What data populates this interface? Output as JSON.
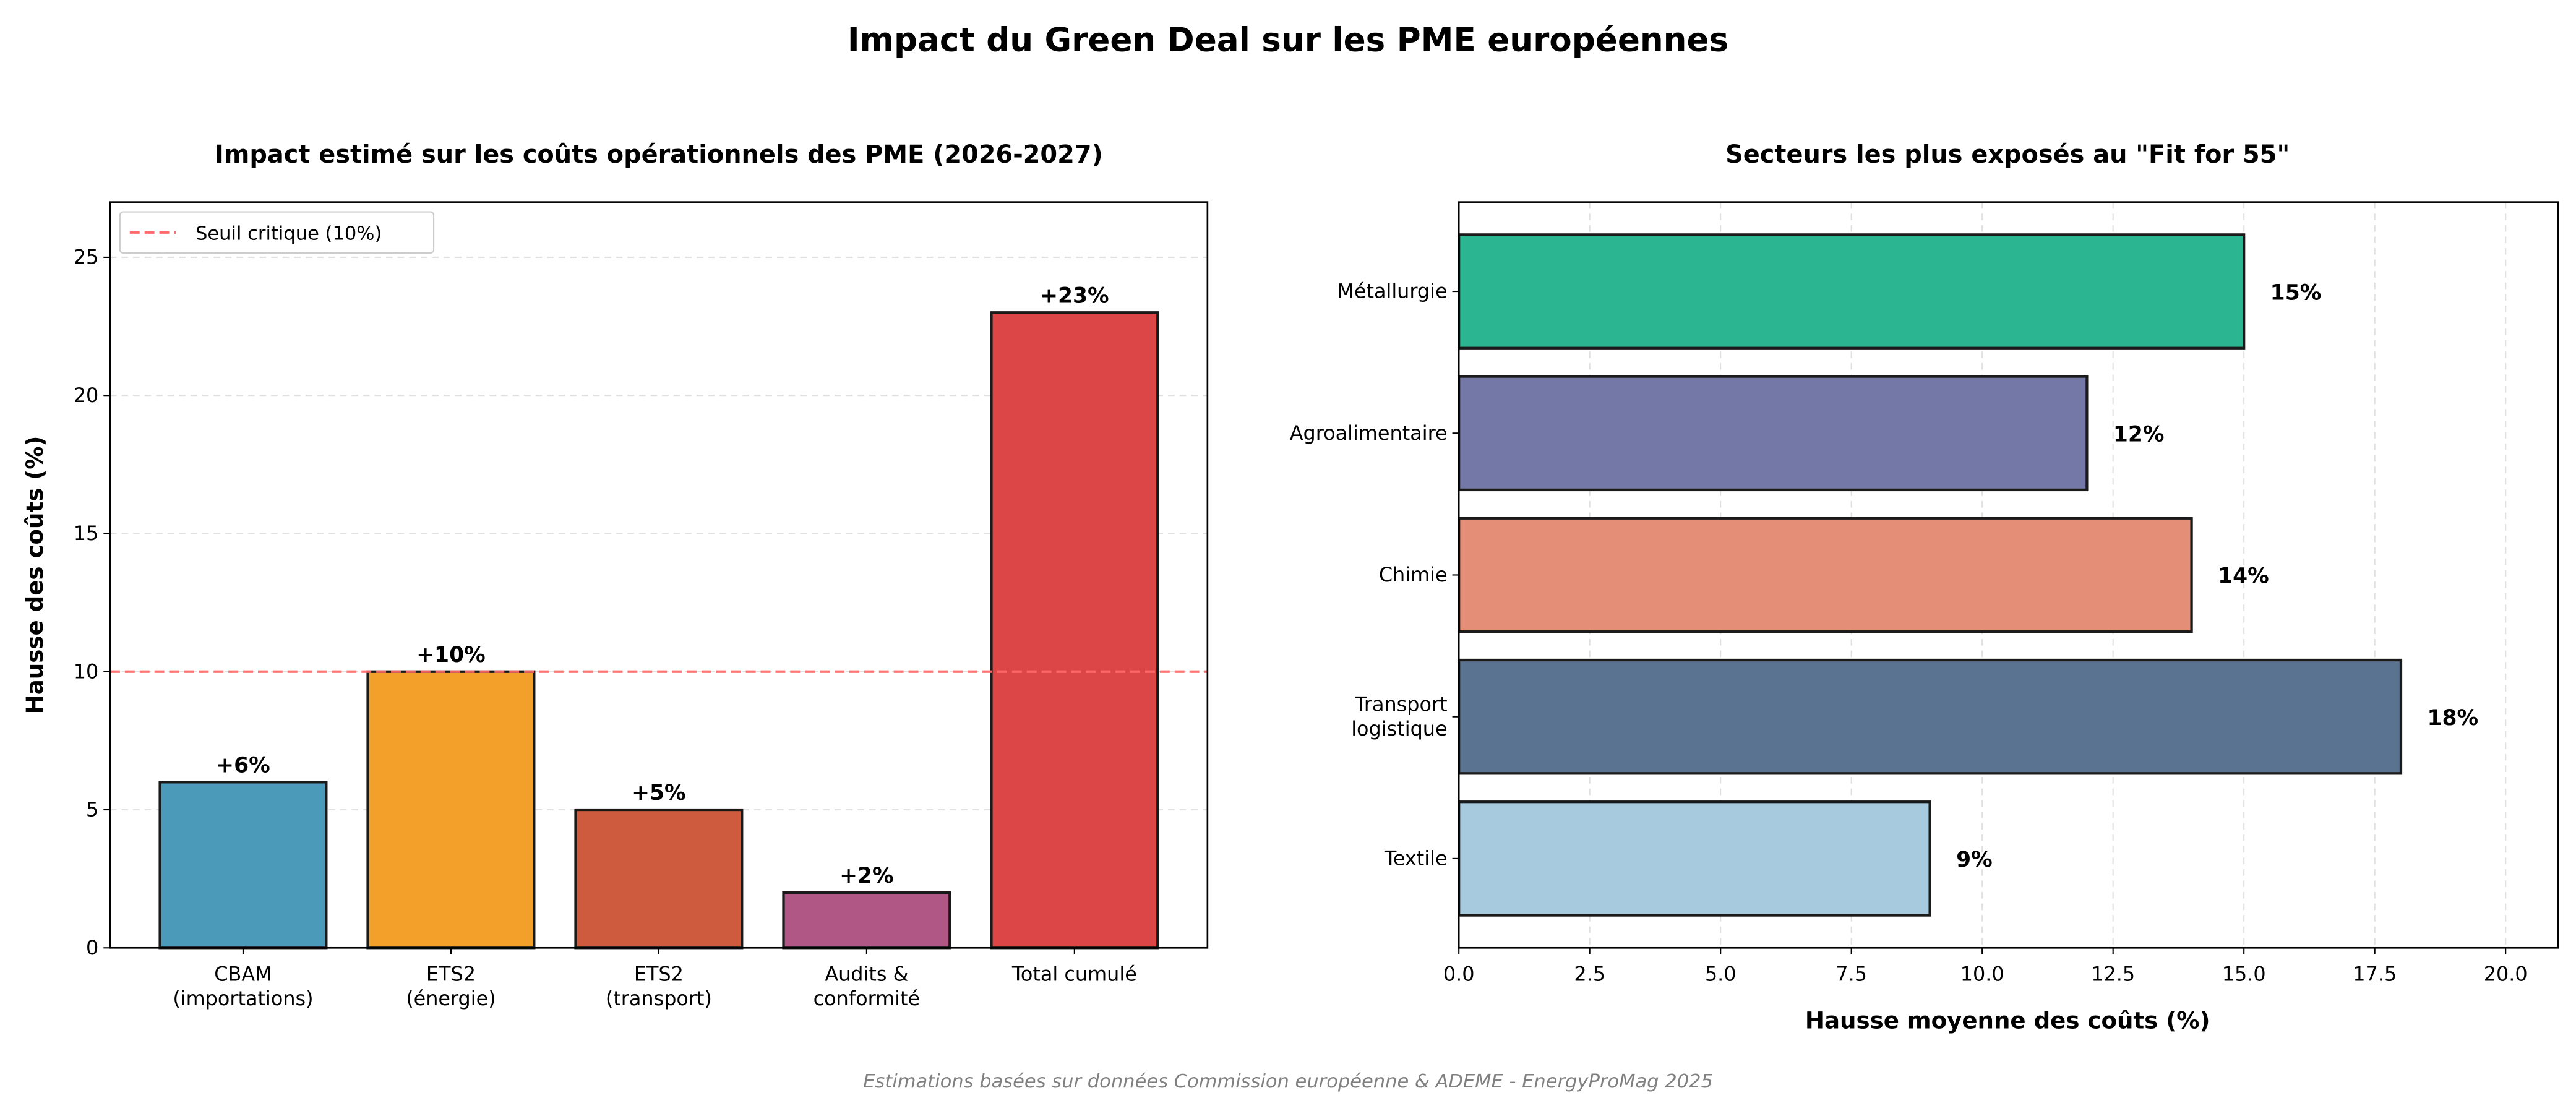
{
  "title": "Impact du Green Deal sur les PME européennes",
  "footer": "Estimations basées sur données Commission européenne & ADEME - EnergyProMag 2025",
  "chart_data": [
    {
      "type": "bar",
      "title": "Impact estimé sur les coûts opérationnels des PME (2026-2027)",
      "xlabel": "",
      "ylabel": "Hausse des coûts (%)",
      "categories": [
        [
          "CBAM",
          "(importations)"
        ],
        [
          "ETS2",
          "(énergie)"
        ],
        [
          "ETS2",
          "(transport)"
        ],
        [
          "Audits &",
          "conformité"
        ],
        [
          "Total cumulé"
        ]
      ],
      "values": [
        6,
        10,
        5,
        2,
        23
      ],
      "data_labels": [
        "+6%",
        "+10%",
        "+5%",
        "+2%",
        "+23%"
      ],
      "colors": [
        "#4b9ab9",
        "#f3a02a",
        "#ce5b3e",
        "#b05785",
        "#dc4647"
      ],
      "ylim": [
        0,
        27
      ],
      "yticks": [
        0,
        5,
        10,
        15,
        20,
        25
      ],
      "grid": "y dashed",
      "reference_line": {
        "value": 10,
        "label": "Seuil critique (10%)",
        "color": "#ff6b6b",
        "style": "dashed"
      },
      "legend": "top-left"
    },
    {
      "type": "bar",
      "orientation": "horizontal",
      "title": "Secteurs les plus exposés au \"Fit for 55\"",
      "xlabel": "Hausse moyenne des coûts (%)",
      "ylabel": "",
      "categories": [
        [
          "Textile"
        ],
        [
          "Transport",
          "logistique"
        ],
        [
          "Chimie"
        ],
        [
          "Agroalimentaire"
        ],
        [
          "Métallurgie"
        ]
      ],
      "values": [
        9,
        18,
        14,
        12,
        15
      ],
      "data_labels": [
        "9%",
        "18%",
        "14%",
        "12%",
        "15%"
      ],
      "colors": [
        "#a8cadf",
        "#5a7391",
        "#e48e78",
        "#7478a6",
        "#2bb590"
      ],
      "xlim": [
        0,
        21
      ],
      "xticks": [
        "0.0",
        "2.5",
        "5.0",
        "7.5",
        "10.0",
        "12.5",
        "15.0",
        "17.5",
        "20.0"
      ],
      "grid": "x dashed"
    }
  ]
}
